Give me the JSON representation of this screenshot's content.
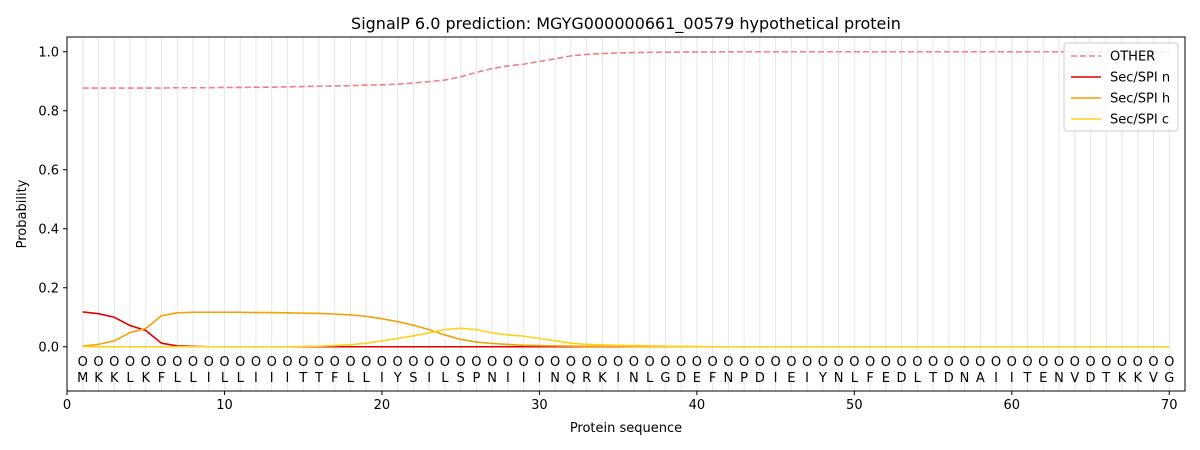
{
  "chart_data": {
    "type": "line",
    "title": "SignalP 6.0 prediction: MGYG000000661_00579 hypothetical protein",
    "xlabel": "Protein sequence",
    "ylabel": "Probability",
    "xlim": [
      0,
      71
    ],
    "ylim": [
      -0.15,
      1.05
    ],
    "xticks": [
      0,
      10,
      20,
      30,
      40,
      50,
      60,
      70
    ],
    "yticks": [
      0.0,
      0.2,
      0.4,
      0.6,
      0.8,
      1.0
    ],
    "ytick_labels": [
      "0.0",
      "0.2",
      "0.4",
      "0.6",
      "0.8",
      "1.0"
    ],
    "grid": "vertical lines at each residue",
    "legend_position": "top-right",
    "sequence": [
      "M",
      "K",
      "K",
      "L",
      "K",
      "F",
      "L",
      "L",
      "I",
      "L",
      "L",
      "I",
      "I",
      "I",
      "T",
      "T",
      "F",
      "L",
      "L",
      "I",
      "Y",
      "S",
      "I",
      "L",
      "S",
      "P",
      "N",
      "I",
      "I",
      "I",
      "N",
      "Q",
      "R",
      "K",
      "I",
      "N",
      "L",
      "G",
      "D",
      "E",
      "F",
      "N",
      "P",
      "D",
      "I",
      "E",
      "I",
      "Y",
      "N",
      "L",
      "F",
      "E",
      "D",
      "L",
      "T",
      "D",
      "N",
      "A",
      "I",
      "I",
      "T",
      "E",
      "N",
      "V",
      "D",
      "T",
      "K",
      "K",
      "V",
      "G"
    ],
    "region_marker": "O",
    "series": [
      {
        "name": "OTHER",
        "color": "#f08080",
        "dash": true,
        "values": [
          0.877,
          0.877,
          0.877,
          0.877,
          0.877,
          0.877,
          0.878,
          0.878,
          0.878,
          0.879,
          0.879,
          0.88,
          0.88,
          0.881,
          0.882,
          0.883,
          0.884,
          0.885,
          0.887,
          0.888,
          0.89,
          0.894,
          0.899,
          0.904,
          0.915,
          0.93,
          0.943,
          0.952,
          0.958,
          0.967,
          0.976,
          0.986,
          0.991,
          0.994,
          0.996,
          0.997,
          0.998,
          0.998,
          0.999,
          0.999,
          0.999,
          1.0,
          1.0,
          1.0,
          1.0,
          1.0,
          1.0,
          1.0,
          1.0,
          1.0,
          1.0,
          1.0,
          1.0,
          1.0,
          1.0,
          1.0,
          1.0,
          1.0,
          1.0,
          1.0,
          1.0,
          1.0,
          1.0,
          1.0,
          1.0,
          1.0,
          1.0,
          1.0,
          1.0,
          1.0
        ]
      },
      {
        "name": "Sec/SPI n",
        "color": "#e00000",
        "dash": false,
        "values": [
          0.118,
          0.112,
          0.1,
          0.072,
          0.055,
          0.012,
          0.003,
          0.001,
          0.0,
          0.0,
          0.0,
          0.0,
          0.0,
          0.0,
          0.0,
          0.0,
          0.0,
          0.0,
          0.0,
          0.0,
          0.0,
          0.0,
          0.0,
          0.0,
          0.0,
          0.0,
          0.0,
          0.0,
          0.0,
          0.0,
          0.0,
          0.0,
          0.0,
          0.0,
          0.0,
          0.0,
          0.0,
          0.0,
          0.0,
          0.0,
          0.0,
          0.0,
          0.0,
          0.0,
          0.0,
          0.0,
          0.0,
          0.0,
          0.0,
          0.0,
          0.0,
          0.0,
          0.0,
          0.0,
          0.0,
          0.0,
          0.0,
          0.0,
          0.0,
          0.0,
          0.0,
          0.0,
          0.0,
          0.0,
          0.0,
          0.0,
          0.0,
          0.0,
          0.0,
          0.0
        ]
      },
      {
        "name": "Sec/SPI h",
        "color": "#f5a000",
        "dash": false,
        "values": [
          0.002,
          0.008,
          0.02,
          0.048,
          0.062,
          0.105,
          0.115,
          0.117,
          0.117,
          0.117,
          0.117,
          0.116,
          0.116,
          0.115,
          0.114,
          0.113,
          0.111,
          0.108,
          0.103,
          0.095,
          0.085,
          0.073,
          0.058,
          0.04,
          0.025,
          0.016,
          0.011,
          0.008,
          0.005,
          0.004,
          0.003,
          0.002,
          0.001,
          0.001,
          0.001,
          0.0,
          0.0,
          0.0,
          0.0,
          0.0,
          0.0,
          0.0,
          0.0,
          0.0,
          0.0,
          0.0,
          0.0,
          0.0,
          0.0,
          0.0,
          0.0,
          0.0,
          0.0,
          0.0,
          0.0,
          0.0,
          0.0,
          0.0,
          0.0,
          0.0,
          0.0,
          0.0,
          0.0,
          0.0,
          0.0,
          0.0,
          0.0,
          0.0,
          0.0,
          0.0
        ]
      },
      {
        "name": "Sec/SPI c",
        "color": "#ffd21a",
        "dash": false,
        "values": [
          0.0,
          0.0,
          0.0,
          0.0,
          0.0,
          0.0,
          0.0,
          0.0,
          0.0,
          0.0,
          0.0,
          0.0,
          0.0,
          0.0,
          0.001,
          0.002,
          0.004,
          0.007,
          0.012,
          0.02,
          0.028,
          0.037,
          0.047,
          0.058,
          0.063,
          0.058,
          0.047,
          0.04,
          0.036,
          0.028,
          0.02,
          0.012,
          0.008,
          0.006,
          0.005,
          0.004,
          0.003,
          0.002,
          0.001,
          0.001,
          0.0,
          0.0,
          0.0,
          0.0,
          0.0,
          0.0,
          0.0,
          0.0,
          0.0,
          0.0,
          0.0,
          0.0,
          0.0,
          0.0,
          0.0,
          0.0,
          0.0,
          0.0,
          0.0,
          0.0,
          0.0,
          0.0,
          0.0,
          0.0,
          0.0,
          0.0,
          0.0,
          0.0,
          0.0,
          0.0
        ]
      }
    ]
  }
}
